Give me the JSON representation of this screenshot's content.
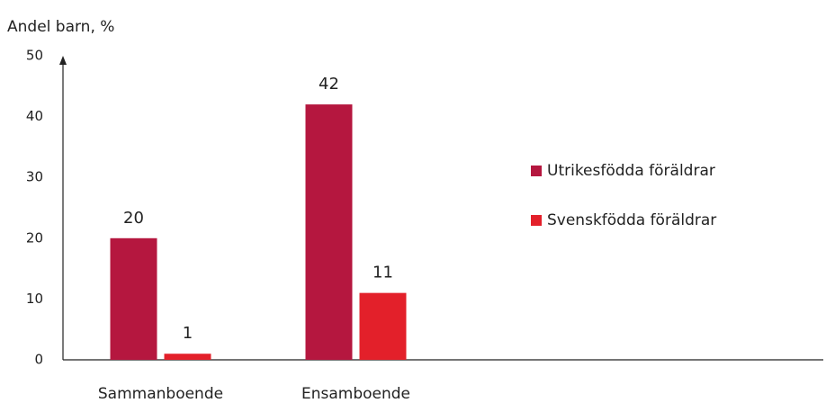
{
  "chart_data": {
    "type": "bar",
    "title": "Andel barn, %",
    "categories": [
      "Sammanboende",
      "Ensamboende"
    ],
    "series": [
      {
        "name": "Utrikesfödda föräldrar",
        "color": "#b5173f",
        "values": [
          20,
          42
        ]
      },
      {
        "name": "Svenskfödda föräldrar",
        "color": "#e3202a",
        "values": [
          1,
          11
        ]
      }
    ],
    "ylim": [
      0,
      50
    ],
    "yticks": [
      0,
      10,
      20,
      30,
      40,
      50
    ],
    "grid": false,
    "legend": "right"
  }
}
